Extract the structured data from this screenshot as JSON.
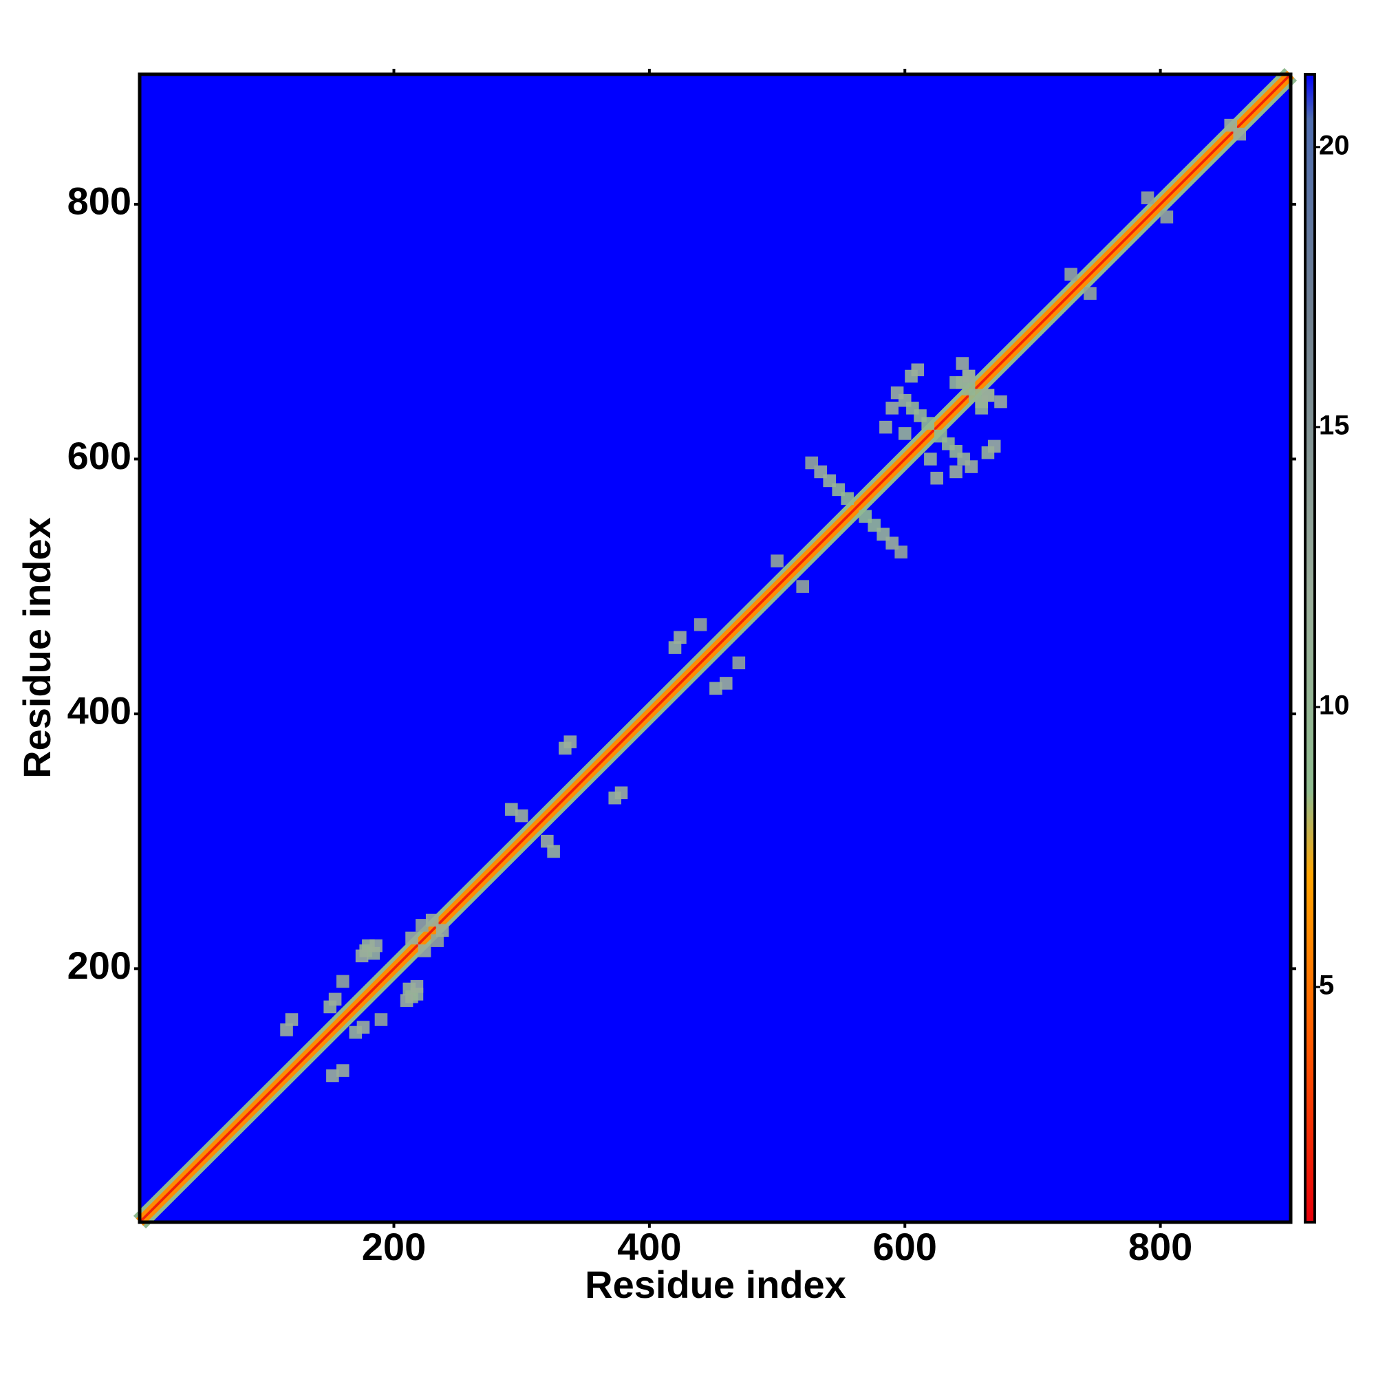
{
  "chart_data": {
    "type": "heatmap",
    "xlabel": "Residue index",
    "ylabel": "Residue index",
    "xlim": [
      1,
      902
    ],
    "ylim": [
      1,
      902
    ],
    "xticks": [
      200,
      400,
      600,
      800
    ],
    "yticks": [
      200,
      400,
      600,
      800
    ],
    "clim": [
      0.8,
      21.3
    ],
    "cticks": [
      5,
      10,
      15,
      20
    ],
    "colorscale": {
      "values": [
        0.8,
        4,
        7,
        8.5,
        12,
        17,
        20.5,
        21.3
      ],
      "colors": [
        "#e8000b",
        "#ff5a00",
        "#ffa500",
        "#8fbc8f",
        "#9aae9a",
        "#708090",
        "#4f6db0",
        "#0000ff"
      ]
    },
    "bands": {
      "offsets": [
        6,
        3,
        0
      ],
      "values": [
        9,
        6,
        2
      ]
    },
    "contacts": {
      "x": [
        178,
        184,
        180,
        175,
        186,
        214,
        222,
        230,
        116,
        120,
        150,
        154,
        160,
        292,
        300,
        334,
        338,
        420,
        424,
        440,
        500,
        555,
        548,
        541,
        534,
        527,
        618,
        612,
        606,
        600,
        594,
        600,
        605,
        610,
        640,
        650,
        655,
        660,
        665,
        645,
        590,
        585,
        730,
        790,
        855
      ],
      "y": [
        214,
        212,
        218,
        210,
        218,
        224,
        234,
        238,
        152,
        160,
        170,
        176,
        190,
        325,
        320,
        373,
        378,
        452,
        460,
        470,
        520,
        569,
        576,
        583,
        590,
        597,
        628,
        634,
        640,
        646,
        652,
        620,
        665,
        670,
        660,
        665,
        650,
        645,
        650,
        675,
        640,
        625,
        745,
        805,
        862
      ],
      "values": [
        11,
        11,
        11,
        12,
        12,
        12,
        13,
        12,
        12,
        12,
        11,
        12,
        13,
        11,
        12,
        11,
        12,
        11,
        12,
        13,
        13,
        9,
        10,
        11,
        12,
        13,
        9,
        10,
        10,
        11,
        12,
        11,
        11,
        12,
        10,
        11,
        10,
        11,
        12,
        12,
        12,
        12,
        13,
        13,
        12
      ]
    }
  }
}
